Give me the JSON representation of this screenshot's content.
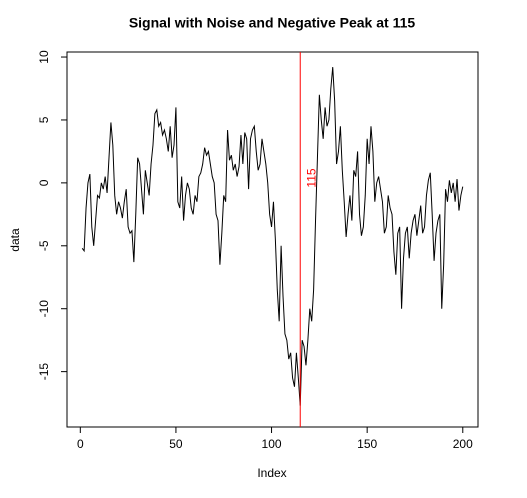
{
  "chart_data": {
    "type": "line",
    "title": "Signal with Noise and Negative Peak at 115",
    "xlabel": "Index",
    "ylabel": "data",
    "x": [
      1,
      2,
      3,
      4,
      5,
      6,
      7,
      8,
      9,
      10,
      11,
      12,
      13,
      14,
      15,
      16,
      17,
      18,
      19,
      20,
      21,
      22,
      23,
      24,
      25,
      26,
      27,
      28,
      29,
      30,
      31,
      32,
      33,
      34,
      35,
      36,
      37,
      38,
      39,
      40,
      41,
      42,
      43,
      44,
      45,
      46,
      47,
      48,
      49,
      50,
      51,
      52,
      53,
      54,
      55,
      56,
      57,
      58,
      59,
      60,
      61,
      62,
      63,
      64,
      65,
      66,
      67,
      68,
      69,
      70,
      71,
      72,
      73,
      74,
      75,
      76,
      77,
      78,
      79,
      80,
      81,
      82,
      83,
      84,
      85,
      86,
      87,
      88,
      89,
      90,
      91,
      92,
      93,
      94,
      95,
      96,
      97,
      98,
      99,
      100,
      101,
      102,
      103,
      104,
      105,
      106,
      107,
      108,
      109,
      110,
      111,
      112,
      113,
      114,
      115,
      116,
      117,
      118,
      119,
      120,
      121,
      122,
      123,
      124,
      125,
      126,
      127,
      128,
      129,
      130,
      131,
      132,
      133,
      134,
      135,
      136,
      137,
      138,
      139,
      140,
      141,
      142,
      143,
      144,
      145,
      146,
      147,
      148,
      149,
      150,
      151,
      152,
      153,
      154,
      155,
      156,
      157,
      158,
      159,
      160,
      161,
      162,
      163,
      164,
      165,
      166,
      167,
      168,
      169,
      170,
      171,
      172,
      173,
      174,
      175,
      176,
      177,
      178,
      179,
      180,
      181,
      182,
      183,
      184,
      185,
      186,
      187,
      188,
      189,
      190,
      191,
      192,
      193,
      194,
      195,
      196,
      197,
      198,
      199,
      200
    ],
    "series": [
      {
        "color": "#000000",
        "values": [
          -5.2,
          -5.4,
          -2,
          0,
          0.7,
          -3.5,
          -5,
          -3,
          -1,
          -1.2,
          0,
          -0.5,
          0.5,
          -0.8,
          2,
          4.8,
          3,
          -1,
          -2.5,
          -1.5,
          -2,
          -2.8,
          -1.5,
          -0.5,
          -3.5,
          -4,
          -3.8,
          -6.3,
          -2.5,
          2,
          1.5,
          -0.5,
          -2.5,
          1,
          0,
          -1,
          1.5,
          3,
          5.5,
          5.8,
          4.5,
          4.8,
          3.8,
          4.2,
          3.5,
          2.5,
          4.5,
          2,
          3,
          6,
          -1.5,
          -2,
          0.5,
          -3,
          -1,
          0,
          -0.5,
          -2,
          -2.5,
          -1,
          -1.5,
          0.5,
          0.8,
          1.5,
          2.8,
          2.2,
          2.5,
          1.5,
          0.5,
          0,
          -2.5,
          -3,
          -6.5,
          -4,
          -1,
          -1.5,
          4.2,
          1.8,
          2.2,
          1,
          1.5,
          0.5,
          1.3,
          3.8,
          1.5,
          4,
          3.5,
          -0.5,
          3.5,
          4.2,
          4.5,
          2.5,
          1,
          1.5,
          3.5,
          2.5,
          1.5,
          0,
          -2.5,
          -3.5,
          -1.5,
          -4.5,
          -8.5,
          -11,
          -5,
          -9,
          -12,
          -12.5,
          -14,
          -13.5,
          -15.5,
          -16.2,
          -13.5,
          -15.5,
          -17.7,
          -12.5,
          -13,
          -14.5,
          -12.5,
          -10,
          -11,
          -8.5,
          -3,
          2,
          7,
          5,
          3.5,
          6,
          4.5,
          5,
          7.5,
          9.2,
          6.5,
          1.5,
          2.5,
          4.5,
          1,
          -1.5,
          -4.3,
          -2.5,
          -1,
          -3,
          1,
          0.5,
          2.5,
          -2.5,
          -4.2,
          -3.5,
          -1,
          3.5,
          1.5,
          4.5,
          2.5,
          -1.5,
          0,
          0.5,
          -0.5,
          -1.5,
          -4,
          -3.5,
          -1,
          -2,
          -2.5,
          -5.5,
          -7.3,
          -4,
          -3.5,
          -10,
          -6,
          -4,
          -3.5,
          -6,
          -4,
          -3,
          -2.5,
          -4.2,
          -3,
          -1.8,
          -4,
          -3.5,
          -1,
          0.2,
          0.8,
          -2.5,
          -6.2,
          -4,
          -3,
          -2.5,
          -10,
          -6.5,
          -0.5,
          -1.5,
          0.2,
          -0.8,
          0,
          -1.5,
          0.3,
          -2.2,
          -1,
          -0.3
        ]
      }
    ],
    "vline": {
      "x": 115,
      "label": "115",
      "color": "#ff0000"
    },
    "xlim": [
      -6.96,
      207.96
    ],
    "xticks": [
      0,
      50,
      100,
      150,
      200
    ],
    "ylim": [
      -19.4,
      10.4
    ],
    "yticks": [
      -15,
      -10,
      -5,
      0,
      5,
      10
    ]
  }
}
